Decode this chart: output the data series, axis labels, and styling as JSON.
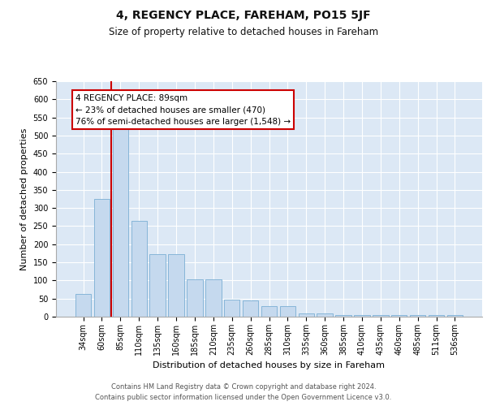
{
  "title": "4, REGENCY PLACE, FAREHAM, PO15 5JF",
  "subtitle": "Size of property relative to detached houses in Fareham",
  "xlabel": "Distribution of detached houses by size in Fareham",
  "ylabel": "Number of detached properties",
  "categories": [
    "34sqm",
    "60sqm",
    "85sqm",
    "110sqm",
    "135sqm",
    "160sqm",
    "185sqm",
    "210sqm",
    "235sqm",
    "260sqm",
    "285sqm",
    "310sqm",
    "335sqm",
    "360sqm",
    "385sqm",
    "410sqm",
    "435sqm",
    "460sqm",
    "485sqm",
    "511sqm",
    "536sqm"
  ],
  "values": [
    62,
    325,
    525,
    265,
    172,
    172,
    102,
    102,
    47,
    45,
    30,
    30,
    10,
    10,
    5,
    5,
    4,
    4,
    4,
    4,
    4
  ],
  "bar_color": "#c5d9ee",
  "bar_edgecolor": "#7aaed4",
  "grid_color": "#ffffff",
  "background_color": "#dce8f5",
  "vline_color": "#cc0000",
  "vline_pos": 1.5,
  "annotation_text": "4 REGENCY PLACE: 89sqm\n← 23% of detached houses are smaller (470)\n76% of semi-detached houses are larger (1,548) →",
  "annotation_box_facecolor": "#ffffff",
  "annotation_box_edgecolor": "#cc0000",
  "ylim": [
    0,
    650
  ],
  "yticks": [
    0,
    50,
    100,
    150,
    200,
    250,
    300,
    350,
    400,
    450,
    500,
    550,
    600,
    650
  ],
  "footer1": "Contains HM Land Registry data © Crown copyright and database right 2024.",
  "footer2": "Contains public sector information licensed under the Open Government Licence v3.0.",
  "title_fontsize": 10,
  "subtitle_fontsize": 8.5,
  "tick_fontsize": 7,
  "ylabel_fontsize": 8,
  "xlabel_fontsize": 8,
  "annotation_fontsize": 7.5,
  "footer_fontsize": 6
}
